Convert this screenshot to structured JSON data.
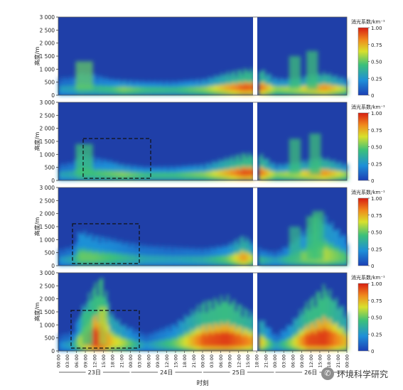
{
  "chart_data": {
    "type": "heatmap",
    "ylabel": "高度/m",
    "xlabel": "时刻",
    "yticks": [
      0,
      500,
      1000,
      1500,
      2000,
      2500,
      3000
    ],
    "ytick_labels": [
      "0",
      "500",
      "1 000",
      "1 500",
      "2 000",
      "2 500",
      "3 000"
    ],
    "ylim": [
      0,
      3000
    ],
    "time_ticks": [
      "00:00",
      "03:00",
      "06:00",
      "09:00",
      "12:00",
      "15:00",
      "18:00",
      "21:00",
      "00:00",
      "03:00",
      "06:00",
      "09:00",
      "12:00",
      "15:00",
      "18:00",
      "21:00",
      "00:00",
      "03:00",
      "06:00",
      "09:00",
      "12:00",
      "15:00",
      "18:00",
      "21:00",
      "00:00",
      "03:00",
      "06:00",
      "09:00",
      "12:00",
      "15:00",
      "18:00",
      "21:00",
      "00:00"
    ],
    "day_labels": [
      "23日",
      "24日",
      "25日",
      "26日"
    ],
    "colorbar": {
      "label": "消光系数/km⁻¹",
      "ticks": [
        "0",
        "0.25",
        "0.50",
        "0.75",
        "1.00"
      ],
      "range": [
        0,
        1
      ],
      "colors": [
        "#1c3fb5",
        "#1e8fd8",
        "#3cc07a",
        "#d8e02c",
        "#f08a1c",
        "#d81e12"
      ]
    },
    "panels": [
      {
        "profile": [
          [
            0.0,
            320,
            0.28
          ],
          [
            0.05,
            340,
            0.32
          ],
          [
            0.07,
            420,
            0.42
          ],
          [
            0.12,
            380,
            0.4
          ],
          [
            0.18,
            300,
            0.45
          ],
          [
            0.22,
            280,
            0.55
          ],
          [
            0.3,
            260,
            0.45
          ],
          [
            0.4,
            260,
            0.42
          ],
          [
            0.5,
            300,
            0.55
          ],
          [
            0.58,
            420,
            0.75
          ],
          [
            0.64,
            480,
            0.9
          ],
          [
            0.7,
            480,
            0.85
          ],
          [
            0.75,
            320,
            0.55
          ],
          [
            0.8,
            300,
            0.6
          ],
          [
            0.86,
            360,
            0.7
          ],
          [
            0.92,
            420,
            0.8
          ],
          [
            1.0,
            300,
            0.55
          ]
        ],
        "plumes": [
          [
            0.06,
            0.12,
            1300,
            0.5
          ],
          [
            0.8,
            0.84,
            1500,
            0.45
          ],
          [
            0.86,
            0.9,
            1700,
            0.45
          ]
        ]
      },
      {
        "profile": [
          [
            0.0,
            300,
            0.3
          ],
          [
            0.05,
            340,
            0.35
          ],
          [
            0.07,
            480,
            0.45
          ],
          [
            0.12,
            420,
            0.45
          ],
          [
            0.18,
            360,
            0.5
          ],
          [
            0.22,
            300,
            0.55
          ],
          [
            0.3,
            250,
            0.45
          ],
          [
            0.4,
            260,
            0.45
          ],
          [
            0.5,
            300,
            0.55
          ],
          [
            0.58,
            420,
            0.75
          ],
          [
            0.64,
            500,
            0.92
          ],
          [
            0.7,
            480,
            0.85
          ],
          [
            0.75,
            300,
            0.55
          ],
          [
            0.8,
            320,
            0.6
          ],
          [
            0.86,
            380,
            0.7
          ],
          [
            0.92,
            420,
            0.8
          ],
          [
            1.0,
            300,
            0.55
          ]
        ],
        "plumes": [
          [
            0.06,
            0.12,
            1400,
            0.45
          ],
          [
            0.8,
            0.84,
            1600,
            0.45
          ],
          [
            0.87,
            0.91,
            1800,
            0.45
          ]
        ]
      },
      {
        "profile": [
          [
            0.0,
            300,
            0.25
          ],
          [
            0.05,
            360,
            0.35
          ],
          [
            0.07,
            650,
            0.5
          ],
          [
            0.12,
            560,
            0.5
          ],
          [
            0.18,
            500,
            0.45
          ],
          [
            0.22,
            450,
            0.4
          ],
          [
            0.3,
            380,
            0.32
          ],
          [
            0.4,
            350,
            0.3
          ],
          [
            0.5,
            320,
            0.35
          ],
          [
            0.58,
            380,
            0.5
          ],
          [
            0.64,
            560,
            0.8
          ],
          [
            0.7,
            300,
            0.4
          ],
          [
            0.75,
            260,
            0.3
          ],
          [
            0.8,
            400,
            0.45
          ],
          [
            0.86,
            700,
            0.55
          ],
          [
            0.92,
            900,
            0.6
          ],
          [
            1.0,
            500,
            0.45
          ]
        ],
        "plumes": [
          [
            0.8,
            0.84,
            1500,
            0.4
          ],
          [
            0.86,
            0.9,
            1900,
            0.45
          ],
          [
            0.88,
            0.92,
            2100,
            0.45
          ]
        ]
      },
      {
        "profile": [
          [
            0.0,
            300,
            0.2
          ],
          [
            0.05,
            350,
            0.35
          ],
          [
            0.07,
            700,
            0.6
          ],
          [
            0.12,
            1200,
            0.95
          ],
          [
            0.15,
            1350,
            0.98
          ],
          [
            0.18,
            700,
            0.7
          ],
          [
            0.22,
            500,
            0.6
          ],
          [
            0.3,
            300,
            0.25
          ],
          [
            0.4,
            500,
            0.5
          ],
          [
            0.5,
            900,
            0.9
          ],
          [
            0.58,
            1000,
            0.95
          ],
          [
            0.64,
            800,
            0.85
          ],
          [
            0.7,
            600,
            0.7
          ],
          [
            0.75,
            300,
            0.3
          ],
          [
            0.8,
            500,
            0.55
          ],
          [
            0.86,
            900,
            0.92
          ],
          [
            0.92,
            1200,
            0.95
          ],
          [
            1.0,
            700,
            0.7
          ]
        ],
        "plumes": [
          [
            0.14,
            0.17,
            1700,
            0.6
          ],
          [
            0.08,
            0.12,
            1500,
            0.45
          ]
        ]
      }
    ]
  },
  "watermark": {
    "text": "环境科学研究",
    "icon": "wechat-icon"
  }
}
